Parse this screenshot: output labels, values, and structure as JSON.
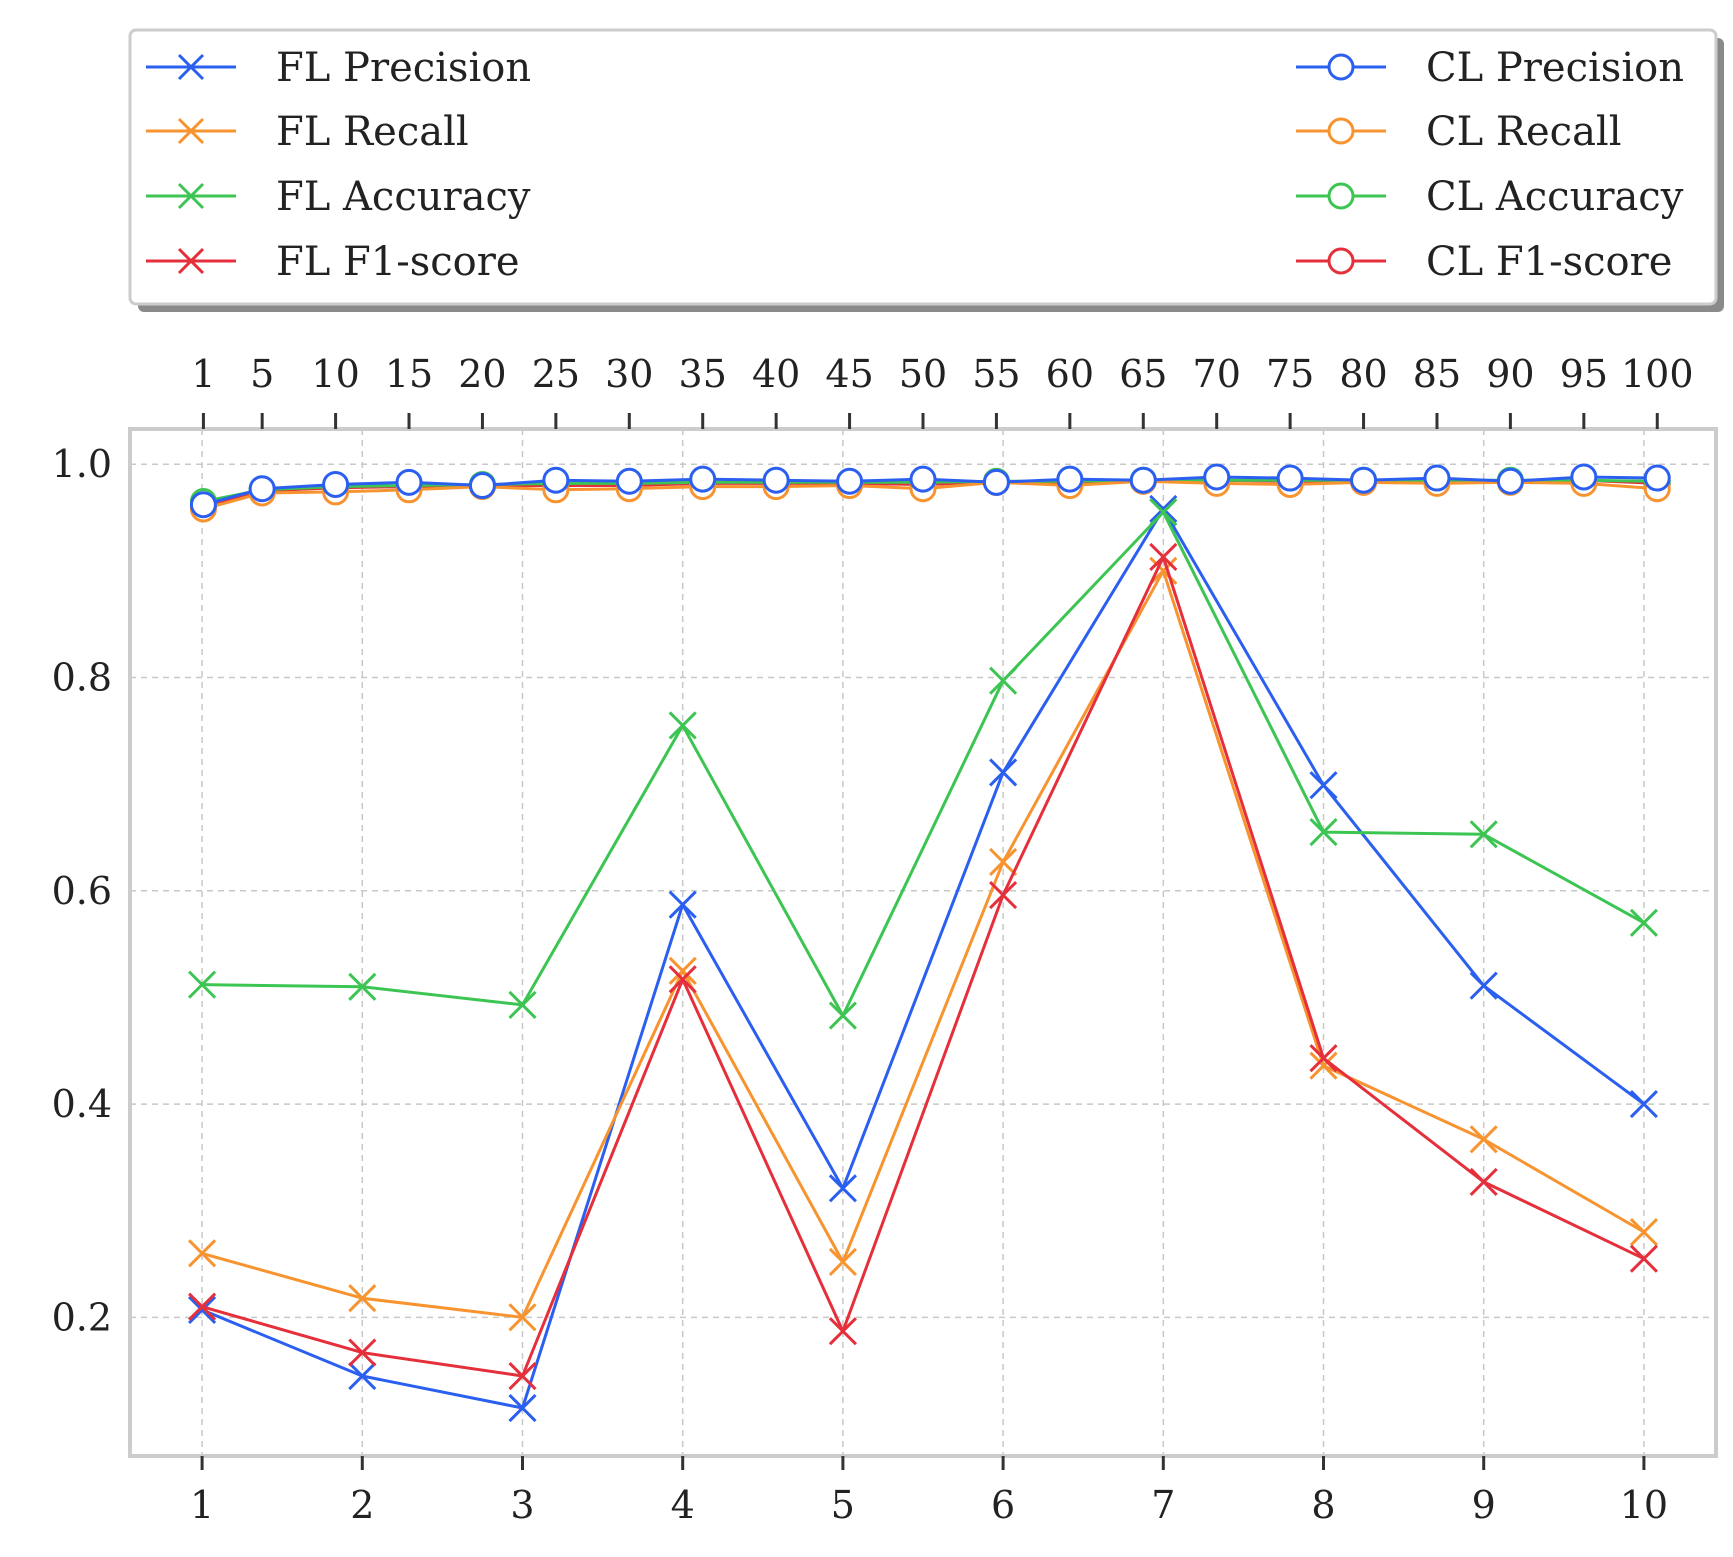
{
  "chart_data": {
    "type": "line",
    "title": "",
    "xlabel": "",
    "ylabel": "",
    "x_bottom": {
      "ticks": [
        1,
        2,
        3,
        4,
        5,
        6,
        7,
        8,
        9,
        10
      ],
      "tick_labels": [
        "1",
        "2",
        "3",
        "4",
        "5",
        "6",
        "7",
        "8",
        "9",
        "10"
      ],
      "range": [
        0.55,
        10.45
      ]
    },
    "x_top": {
      "ticks": [
        1,
        5,
        10,
        15,
        20,
        25,
        30,
        35,
        40,
        45,
        50,
        55,
        60,
        65,
        70,
        75,
        80,
        85,
        90,
        95,
        100
      ],
      "tick_labels": [
        "1",
        "5",
        "10",
        "15",
        "20",
        "25",
        "30",
        "35",
        "40",
        "45",
        "50",
        "55",
        "60",
        "65",
        "70",
        "75",
        "80",
        "85",
        "90",
        "95",
        "100"
      ],
      "range": [
        -4.0,
        104.0
      ]
    },
    "y": {
      "ticks": [
        0.2,
        0.4,
        0.6,
        0.8,
        1.0
      ],
      "tick_labels": [
        "0.2",
        "0.4",
        "0.6",
        "0.8",
        "1.0"
      ],
      "range": [
        0.07,
        1.033
      ]
    },
    "grid": true,
    "legend": {
      "placement": "top (above plot, two columns)",
      "entries": [
        "FL Precision",
        "FL Recall",
        "FL Accuracy",
        "FL F1-score",
        "CL Precision",
        "CL Recall",
        "CL Accuracy",
        "CL F1-score"
      ]
    },
    "fl_x": [
      1,
      2,
      3,
      4,
      5,
      6,
      7,
      8,
      9,
      10
    ],
    "fl_series": [
      {
        "name": "FL Precision",
        "color": "#2b5ff0",
        "marker": "x",
        "values": [
          0.207,
          0.145,
          0.115,
          0.587,
          0.321,
          0.711,
          0.958,
          0.699,
          0.511,
          0.4
        ]
      },
      {
        "name": "FL Recall",
        "color": "#f89430",
        "marker": "x",
        "values": [
          0.26,
          0.218,
          0.2,
          0.525,
          0.252,
          0.627,
          0.9,
          0.436,
          0.367,
          0.28
        ]
      },
      {
        "name": "FL Accuracy",
        "color": "#3cc552",
        "marker": "x",
        "values": [
          0.512,
          0.51,
          0.493,
          0.755,
          0.483,
          0.797,
          0.955,
          0.655,
          0.653,
          0.57
        ]
      },
      {
        "name": "FL F1-score",
        "color": "#e5303c",
        "marker": "x",
        "values": [
          0.21,
          0.167,
          0.145,
          0.517,
          0.187,
          0.596,
          0.913,
          0.443,
          0.327,
          0.255
        ]
      }
    ],
    "cl_x": [
      1,
      5,
      10,
      15,
      20,
      25,
      30,
      35,
      40,
      45,
      50,
      55,
      60,
      65,
      70,
      75,
      80,
      85,
      90,
      95,
      100
    ],
    "cl_series": [
      {
        "name": "CL Precision",
        "color": "#2b5ff0",
        "marker": "o",
        "values": [
          0.962,
          0.977,
          0.981,
          0.983,
          0.98,
          0.985,
          0.984,
          0.986,
          0.985,
          0.984,
          0.986,
          0.983,
          0.986,
          0.985,
          0.988,
          0.987,
          0.985,
          0.987,
          0.984,
          0.988,
          0.987
        ]
      },
      {
        "name": "CL Recall",
        "color": "#f89430",
        "marker": "o",
        "values": [
          0.958,
          0.973,
          0.974,
          0.976,
          0.979,
          0.976,
          0.977,
          0.979,
          0.979,
          0.98,
          0.977,
          0.983,
          0.98,
          0.984,
          0.982,
          0.981,
          0.983,
          0.982,
          0.983,
          0.982,
          0.977
        ]
      },
      {
        "name": "CL Accuracy",
        "color": "#3cc552",
        "marker": "o",
        "values": [
          0.965,
          0.976,
          0.979,
          0.98,
          0.981,
          0.982,
          0.982,
          0.983,
          0.983,
          0.983,
          0.983,
          0.984,
          0.984,
          0.985,
          0.985,
          0.985,
          0.985,
          0.985,
          0.985,
          0.985,
          0.984
        ]
      },
      {
        "name": "CL F1-score",
        "color": "#e5303c",
        "marker": "o",
        "values": [
          0.96,
          0.975,
          0.978,
          0.979,
          0.98,
          0.98,
          0.98,
          0.982,
          0.982,
          0.982,
          0.981,
          0.983,
          0.983,
          0.984,
          0.985,
          0.984,
          0.984,
          0.984,
          0.984,
          0.985,
          0.982
        ]
      }
    ]
  }
}
